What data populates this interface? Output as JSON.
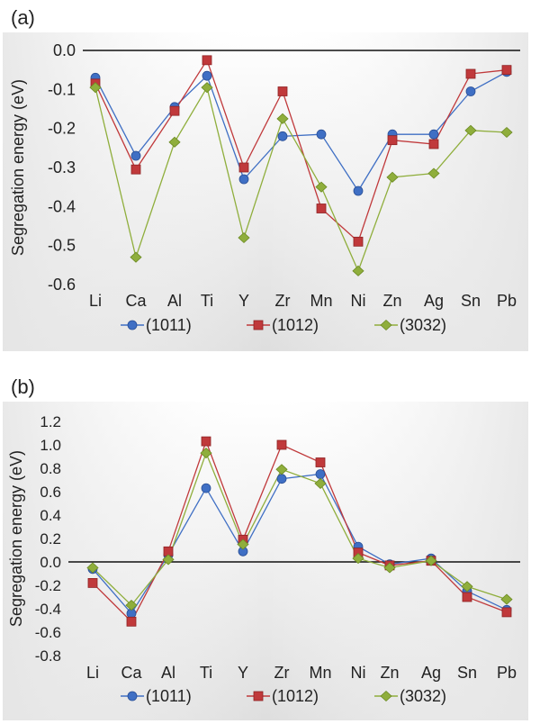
{
  "chart_data": [
    {
      "panel_label": "(a)",
      "type": "line",
      "categories": [
        "Li",
        "Ca",
        "Al",
        "Ti",
        "Y",
        "Zr",
        "Mn",
        "Ni",
        "Zn",
        "Ag",
        "Sn",
        "Pb"
      ],
      "x_positions": [
        0,
        1,
        2,
        3,
        4,
        5,
        6,
        7,
        8,
        9,
        10,
        11
      ],
      "ylabel": "Segregation energy (eV)",
      "ylim": [
        -0.6,
        0.0
      ],
      "yticks": [
        0.0,
        -0.1,
        -0.2,
        -0.3,
        -0.4,
        -0.5,
        -0.6
      ],
      "ytick_labels": [
        "0.0",
        "-0.1",
        "-0.2",
        "-0.3",
        "-0.4",
        "-0.5",
        "-0.6"
      ],
      "legend_position": "bottom",
      "series": [
        {
          "name": "(1011)",
          "color": "#3f6fc4",
          "marker": "circle",
          "values": [
            -0.07,
            -0.27,
            -0.145,
            -0.065,
            -0.33,
            -0.22,
            -0.215,
            -0.36,
            -0.215,
            -0.215,
            -0.105,
            -0.055
          ]
        },
        {
          "name": "(1012)",
          "color": "#c0393b",
          "marker": "square",
          "values": [
            -0.085,
            -0.305,
            -0.155,
            -0.025,
            -0.3,
            -0.105,
            -0.405,
            -0.49,
            -0.23,
            -0.24,
            -0.06,
            -0.05
          ]
        },
        {
          "name": "(3032)",
          "color": "#8fae3c",
          "marker": "diamond",
          "values": [
            -0.095,
            -0.53,
            -0.235,
            -0.095,
            -0.48,
            -0.175,
            -0.35,
            -0.565,
            -0.325,
            -0.315,
            -0.205,
            -0.21
          ]
        }
      ]
    },
    {
      "panel_label": "(b)",
      "type": "line",
      "categories": [
        "Li",
        "Ca",
        "Al",
        "Ti",
        "Y",
        "Zr",
        "Mn",
        "Ni",
        "Zn",
        "Ag",
        "Sn",
        "Pb"
      ],
      "x_positions": [
        0,
        1,
        2,
        3,
        4,
        5,
        6,
        7,
        8,
        9,
        10,
        11
      ],
      "ylabel": "Segregation energy (eV)",
      "ylim": [
        -0.8,
        1.2
      ],
      "yticks": [
        1.2,
        1.0,
        0.8,
        0.6,
        0.4,
        0.2,
        0.0,
        -0.2,
        -0.4,
        -0.6,
        -0.8
      ],
      "ytick_labels": [
        "1.2",
        "1.0",
        "0.8",
        "0.6",
        "0.4",
        "0.2",
        "0.0",
        "-0.2",
        "-0.4",
        "-0.6",
        "-0.8"
      ],
      "legend_position": "bottom",
      "series": [
        {
          "name": "(1011)",
          "color": "#3f6fc4",
          "marker": "circle",
          "values": [
            -0.06,
            -0.44,
            0.06,
            0.63,
            0.09,
            0.71,
            0.75,
            0.13,
            -0.02,
            0.03,
            -0.25,
            -0.41
          ]
        },
        {
          "name": "(1012)",
          "color": "#c0393b",
          "marker": "square",
          "values": [
            -0.18,
            -0.51,
            0.09,
            1.03,
            0.19,
            1.0,
            0.85,
            0.08,
            -0.03,
            0.01,
            -0.3,
            -0.43
          ]
        },
        {
          "name": "(3032)",
          "color": "#8fae3c",
          "marker": "diamond",
          "values": [
            -0.05,
            -0.37,
            0.02,
            0.93,
            0.15,
            0.79,
            0.67,
            0.03,
            -0.05,
            0.01,
            -0.21,
            -0.32
          ]
        }
      ]
    }
  ]
}
